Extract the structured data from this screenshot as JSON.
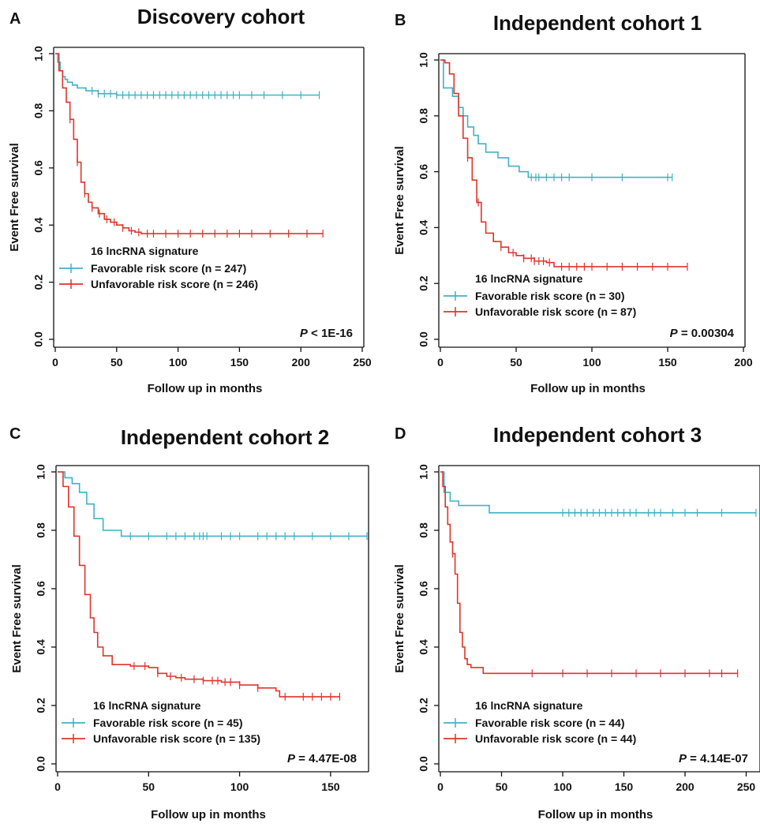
{
  "colors": {
    "favorable": "#3fb3c4",
    "unfavorable": "#e0342a"
  },
  "chart_data": [
    {
      "type": "line",
      "panel": "A",
      "title": "Discovery cohort",
      "xlabel": "Follow up in months",
      "ylabel": "Event Free survival",
      "xlim": [
        0,
        250
      ],
      "ylim": [
        0,
        1
      ],
      "xticks": [
        0,
        50,
        100,
        150,
        200,
        250
      ],
      "yticks": [
        0.0,
        0.2,
        0.4,
        0.6,
        0.8,
        1.0
      ],
      "legend_title": "16 lncRNA signature",
      "legend_placement": "bottom-left",
      "p_prefix": "P",
      "p_value": "< 1E-16",
      "series": [
        {
          "name": "Favorable risk score (n = 247)",
          "color": "favorable",
          "x": [
            0,
            2,
            4,
            6,
            8,
            10,
            14,
            18,
            25,
            35,
            50,
            215
          ],
          "y": [
            1.0,
            0.97,
            0.94,
            0.92,
            0.91,
            0.9,
            0.89,
            0.88,
            0.87,
            0.86,
            0.855,
            0.855
          ],
          "censor_x": [
            30,
            35,
            40,
            45,
            50,
            55,
            60,
            65,
            70,
            75,
            80,
            85,
            90,
            95,
            100,
            105,
            110,
            115,
            120,
            125,
            130,
            135,
            140,
            145,
            150,
            160,
            170,
            185,
            200,
            215
          ]
        },
        {
          "name": "Unfavorable risk score (n = 246)",
          "color": "unfavorable",
          "x": [
            0,
            3,
            6,
            9,
            12,
            15,
            18,
            21,
            24,
            27,
            30,
            35,
            40,
            45,
            50,
            55,
            60,
            65,
            70,
            218
          ],
          "y": [
            1.0,
            0.94,
            0.88,
            0.83,
            0.77,
            0.7,
            0.62,
            0.55,
            0.51,
            0.48,
            0.46,
            0.44,
            0.42,
            0.41,
            0.4,
            0.39,
            0.38,
            0.375,
            0.37,
            0.37
          ],
          "censor_x": [
            12,
            18,
            24,
            30,
            36,
            42,
            48,
            55,
            62,
            68,
            75,
            80,
            90,
            100,
            110,
            120,
            130,
            140,
            150,
            160,
            175,
            190,
            205,
            218
          ]
        }
      ]
    },
    {
      "type": "line",
      "panel": "B",
      "title": "Independent cohort 1",
      "xlabel": "Follow up in months",
      "ylabel": "Event Free survival",
      "xlim": [
        0,
        200
      ],
      "ylim": [
        0,
        1
      ],
      "xticks": [
        0,
        50,
        100,
        150,
        200
      ],
      "yticks": [
        0.0,
        0.2,
        0.4,
        0.6,
        0.8,
        1.0
      ],
      "legend_title": "16 lncRNA signature",
      "legend_placement": "bottom-left",
      "p_prefix": "P",
      "p_value": "= 0.00304",
      "series": [
        {
          "name": "Favorable risk score (n = 30)",
          "color": "favorable",
          "x": [
            0,
            2,
            8,
            12,
            15,
            18,
            22,
            25,
            30,
            38,
            45,
            52,
            58,
            153
          ],
          "y": [
            1.0,
            0.9,
            0.87,
            0.83,
            0.8,
            0.76,
            0.73,
            0.7,
            0.67,
            0.65,
            0.62,
            0.6,
            0.58,
            0.58
          ],
          "censor_x": [
            60,
            63,
            65,
            70,
            75,
            80,
            85,
            100,
            120,
            150,
            153
          ]
        },
        {
          "name": "Unfavorable risk score (n = 87)",
          "color": "unfavorable",
          "x": [
            0,
            3,
            6,
            9,
            12,
            15,
            18,
            21,
            24,
            27,
            30,
            35,
            40,
            45,
            50,
            55,
            62,
            70,
            75,
            163
          ],
          "y": [
            1.0,
            0.99,
            0.95,
            0.88,
            0.8,
            0.72,
            0.65,
            0.57,
            0.49,
            0.42,
            0.38,
            0.35,
            0.33,
            0.31,
            0.3,
            0.29,
            0.28,
            0.275,
            0.26,
            0.26
          ],
          "censor_x": [
            18,
            25,
            40,
            48,
            55,
            60,
            62,
            65,
            68,
            72,
            80,
            85,
            90,
            95,
            100,
            110,
            120,
            130,
            140,
            150,
            163
          ]
        }
      ]
    },
    {
      "type": "line",
      "panel": "C",
      "title": "Independent cohort 2",
      "xlabel": "Follow up in months",
      "ylabel": "Event Free survival",
      "xlim": [
        0,
        170
      ],
      "ylim": [
        0,
        1
      ],
      "xticks": [
        0,
        50,
        100,
        150
      ],
      "yticks": [
        0.0,
        0.2,
        0.4,
        0.6,
        0.8,
        1.0
      ],
      "legend_title": "16 lncRNA signature",
      "legend_placement": "bottom-left",
      "p_prefix": "P",
      "p_value": "= 4.47E-08",
      "series": [
        {
          "name": "Favorable risk score (n = 45)",
          "color": "favorable",
          "x": [
            0,
            4,
            8,
            12,
            16,
            20,
            25,
            35,
            170
          ],
          "y": [
            1.0,
            0.98,
            0.96,
            0.93,
            0.89,
            0.84,
            0.8,
            0.78,
            0.78
          ],
          "censor_x": [
            40,
            50,
            60,
            65,
            70,
            75,
            78,
            80,
            82,
            90,
            95,
            100,
            110,
            115,
            120,
            125,
            130,
            140,
            150,
            160,
            170
          ]
        },
        {
          "name": "Unfavorable risk score (n = 135)",
          "color": "unfavorable",
          "x": [
            0,
            3,
            6,
            9,
            12,
            15,
            18,
            20,
            22,
            25,
            30,
            40,
            50,
            55,
            60,
            65,
            70,
            80,
            90,
            100,
            110,
            120,
            122,
            155
          ],
          "y": [
            1.0,
            0.95,
            0.88,
            0.78,
            0.68,
            0.58,
            0.5,
            0.45,
            0.4,
            0.37,
            0.34,
            0.335,
            0.33,
            0.31,
            0.3,
            0.295,
            0.29,
            0.285,
            0.28,
            0.27,
            0.26,
            0.25,
            0.23,
            0.23
          ],
          "censor_x": [
            42,
            48,
            55,
            62,
            68,
            75,
            80,
            85,
            88,
            92,
            95,
            100,
            110,
            125,
            135,
            140,
            145,
            150,
            155
          ]
        }
      ]
    },
    {
      "type": "line",
      "panel": "D",
      "title": "Independent cohort 3",
      "xlabel": "Follow up in months",
      "ylabel": "Event Free survival",
      "xlim": [
        0,
        260
      ],
      "ylim": [
        0,
        1
      ],
      "xticks": [
        0,
        50,
        100,
        150,
        200,
        250
      ],
      "yticks": [
        0.0,
        0.2,
        0.4,
        0.6,
        0.8,
        1.0
      ],
      "legend_title": "16 lncRNA signature",
      "legend_placement": "bottom-left",
      "p_prefix": "P",
      "p_value": "= 4.14E-07",
      "series": [
        {
          "name": "Favorable risk score (n = 44)",
          "color": "favorable",
          "x": [
            0,
            3,
            8,
            15,
            40,
            258
          ],
          "y": [
            1.0,
            0.93,
            0.9,
            0.885,
            0.86,
            0.86
          ],
          "censor_x": [
            100,
            105,
            110,
            115,
            120,
            125,
            130,
            135,
            140,
            145,
            150,
            155,
            160,
            170,
            175,
            180,
            190,
            200,
            210,
            230,
            258
          ]
        },
        {
          "name": "Unfavorable risk score (n = 44)",
          "color": "unfavorable",
          "x": [
            0,
            2,
            4,
            6,
            8,
            10,
            12,
            14,
            16,
            18,
            20,
            22,
            25,
            35,
            243
          ],
          "y": [
            1.0,
            0.95,
            0.88,
            0.82,
            0.76,
            0.72,
            0.65,
            0.55,
            0.45,
            0.4,
            0.36,
            0.34,
            0.33,
            0.31,
            0.31
          ],
          "censor_x": [
            10,
            75,
            100,
            120,
            140,
            160,
            180,
            200,
            220,
            230,
            243
          ]
        }
      ]
    }
  ]
}
